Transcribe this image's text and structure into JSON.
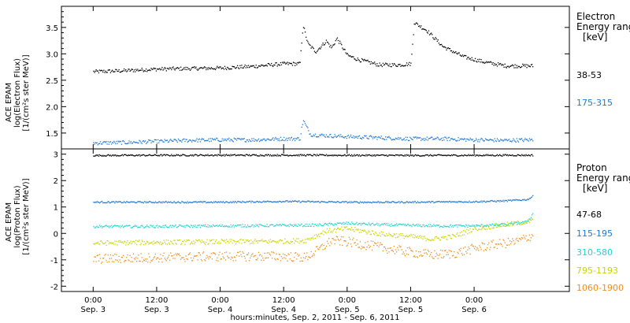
{
  "chart_data": [
    {
      "type": "scatter",
      "panel": "electron",
      "ylabel": [
        "ACE EPAM",
        "log(Electron Flux)",
        "[1/(cm²s ster MeV)]"
      ],
      "ylim": [
        1.2,
        3.9
      ],
      "yticks": [
        1.5,
        2.0,
        2.5,
        3.0,
        3.5
      ],
      "ytick_labels": [
        "1.5",
        "2.0",
        "2.5",
        "3.0",
        "3.5"
      ],
      "legend_title": [
        "Electron",
        "Energy ranges",
        "[keV]"
      ],
      "series": [
        {
          "name": "38-53",
          "color": "#000000",
          "points": [
            [
              0,
              2.67
            ],
            [
              6,
              2.69
            ],
            [
              12,
              2.72
            ],
            [
              18,
              2.73
            ],
            [
              24,
              2.74
            ],
            [
              30,
              2.77
            ],
            [
              36,
              2.82
            ],
            [
              39,
              2.82
            ],
            [
              39.6,
              3.55
            ],
            [
              40.5,
              3.2
            ],
            [
              42,
              3.05
            ],
            [
              44,
              3.25
            ],
            [
              45,
              3.12
            ],
            [
              46,
              3.3
            ],
            [
              48,
              2.98
            ],
            [
              50,
              2.9
            ],
            [
              54,
              2.8
            ],
            [
              58,
              2.8
            ],
            [
              60,
              2.82
            ],
            [
              60.6,
              3.6
            ],
            [
              63,
              3.45
            ],
            [
              66,
              3.15
            ],
            [
              70,
              2.95
            ],
            [
              74,
              2.85
            ],
            [
              78,
              2.78
            ],
            [
              83,
              2.78
            ]
          ]
        },
        {
          "name": "175-315",
          "color": "#1f77d0",
          "points": [
            [
              0,
              1.32
            ],
            [
              6,
              1.33
            ],
            [
              12,
              1.35
            ],
            [
              18,
              1.37
            ],
            [
              24,
              1.38
            ],
            [
              30,
              1.38
            ],
            [
              36,
              1.4
            ],
            [
              39,
              1.4
            ],
            [
              39.6,
              1.75
            ],
            [
              41,
              1.48
            ],
            [
              44,
              1.46
            ],
            [
              48,
              1.44
            ],
            [
              54,
              1.42
            ],
            [
              60,
              1.4
            ],
            [
              66,
              1.4
            ],
            [
              72,
              1.38
            ],
            [
              78,
              1.37
            ],
            [
              83,
              1.38
            ]
          ]
        }
      ]
    },
    {
      "type": "scatter",
      "panel": "proton",
      "ylabel": [
        "ACE EPAM",
        "log(Proton Flux)",
        "[1/(cm²s ster MeV)]"
      ],
      "ylim": [
        -2.2,
        3.2
      ],
      "yticks": [
        -2,
        -1,
        0,
        1,
        2,
        3
      ],
      "ytick_labels": [
        "-2",
        "-1",
        "0",
        "1",
        "2",
        "3"
      ],
      "legend_title": [
        "Proton",
        "Energy ranges",
        "[keV]"
      ],
      "series": [
        {
          "name": "47-68",
          "color": "#000000",
          "points": [
            [
              0,
              2.97
            ],
            [
              20,
              2.98
            ],
            [
              40,
              2.98
            ],
            [
              60,
              2.97
            ],
            [
              83,
              2.98
            ]
          ]
        },
        {
          "name": "115-195",
          "color": "#1f77d0",
          "points": [
            [
              0,
              1.2
            ],
            [
              12,
              1.2
            ],
            [
              24,
              1.2
            ],
            [
              36,
              1.23
            ],
            [
              48,
              1.2
            ],
            [
              60,
              1.2
            ],
            [
              72,
              1.22
            ],
            [
              78,
              1.25
            ],
            [
              82,
              1.3
            ],
            [
              83,
              1.42
            ]
          ]
        },
        {
          "name": "310-580",
          "color": "#22d3d3",
          "points": [
            [
              0,
              0.28
            ],
            [
              12,
              0.28
            ],
            [
              24,
              0.3
            ],
            [
              36,
              0.32
            ],
            [
              42,
              0.33
            ],
            [
              48,
              0.4
            ],
            [
              54,
              0.35
            ],
            [
              60,
              0.32
            ],
            [
              66,
              0.3
            ],
            [
              72,
              0.3
            ],
            [
              78,
              0.35
            ],
            [
              82,
              0.45
            ],
            [
              83,
              0.75
            ]
          ]
        },
        {
          "name": "795-1193",
          "color": "#c8d400",
          "points": [
            [
              0,
              -0.35
            ],
            [
              12,
              -0.32
            ],
            [
              24,
              -0.3
            ],
            [
              36,
              -0.28
            ],
            [
              40,
              -0.25
            ],
            [
              44,
              0.1
            ],
            [
              48,
              0.2
            ],
            [
              54,
              0.0
            ],
            [
              60,
              -0.1
            ],
            [
              64,
              -0.2
            ],
            [
              68,
              -0.1
            ],
            [
              72,
              0.2
            ],
            [
              76,
              0.3
            ],
            [
              80,
              0.4
            ],
            [
              83,
              0.5
            ]
          ]
        },
        {
          "name": "1060-1900",
          "color": "#f08c1e",
          "points": [
            [
              0,
              -0.95
            ],
            [
              12,
              -0.9
            ],
            [
              24,
              -0.85
            ],
            [
              36,
              -0.85
            ],
            [
              40,
              -0.9
            ],
            [
              43,
              -0.55
            ],
            [
              45,
              -0.25
            ],
            [
              48,
              -0.3
            ],
            [
              54,
              -0.5
            ],
            [
              60,
              -0.7
            ],
            [
              64,
              -0.8
            ],
            [
              68,
              -0.75
            ],
            [
              72,
              -0.55
            ],
            [
              76,
              -0.4
            ],
            [
              80,
              -0.3
            ],
            [
              83,
              -0.05
            ]
          ]
        }
      ]
    }
  ],
  "x_axis": {
    "xlim": [
      -6,
      90
    ],
    "ticks": [
      {
        "x": 0,
        "time": "0:00",
        "date": "Sep. 3"
      },
      {
        "x": 12,
        "time": "12:00",
        "date": "Sep. 3"
      },
      {
        "x": 24,
        "time": "0:00",
        "date": "Sep. 4"
      },
      {
        "x": 36,
        "time": "12:00",
        "date": "Sep. 4"
      },
      {
        "x": 48,
        "time": "0:00",
        "date": "Sep. 5"
      },
      {
        "x": 60,
        "time": "12:00",
        "date": "Sep. 5"
      },
      {
        "x": 72,
        "time": "0:00",
        "date": "Sep. 6"
      }
    ],
    "label": "hours:minutes, Sep.  2, 2011 - Sep.  6, 2011"
  }
}
